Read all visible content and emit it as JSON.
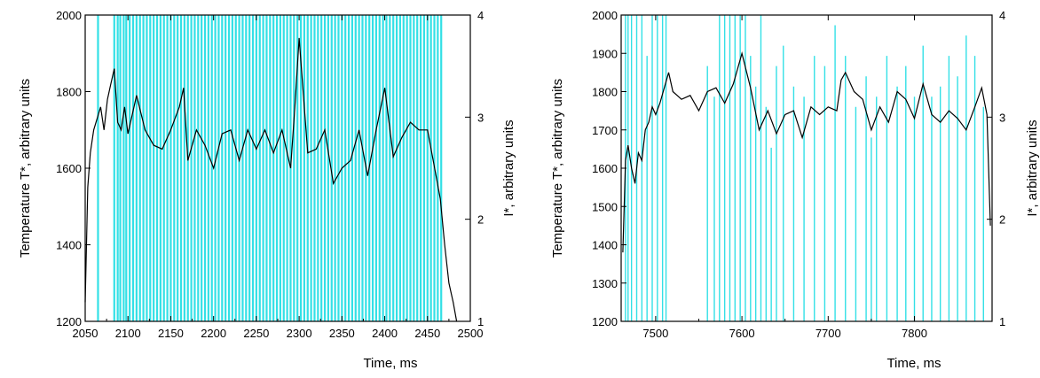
{
  "chart_data": [
    {
      "type": "line",
      "xlabel": "Time, ms",
      "ylabel": "Temperature T*, arbitrary units",
      "y2label": "I*, arbitrary units",
      "xlim": [
        2050,
        2500
      ],
      "ylim": [
        1200,
        2000
      ],
      "y2lim": [
        1,
        4
      ],
      "x_ticks": [
        2050,
        2100,
        2150,
        2200,
        2250,
        2300,
        2350,
        2400,
        2450,
        2500
      ],
      "y_ticks": [
        1200,
        1400,
        1600,
        1800,
        2000
      ],
      "y2_ticks": [
        1,
        2,
        3,
        4
      ],
      "grid": false,
      "colors": {
        "temperature": "#000000",
        "intensity": "#33e0e6"
      },
      "series": [
        {
          "axis": "left",
          "x": [
            2050,
            2053,
            2056,
            2060,
            2064,
            2068,
            2072,
            2076,
            2080,
            2084,
            2088,
            2092,
            2096,
            2100,
            2110,
            2120,
            2130,
            2140,
            2150,
            2160,
            2165,
            2170,
            2180,
            2190,
            2200,
            2210,
            2220,
            2230,
            2240,
            2250,
            2260,
            2270,
            2280,
            2290,
            2295,
            2300,
            2310,
            2320,
            2330,
            2340,
            2350,
            2360,
            2370,
            2380,
            2390,
            2400,
            2410,
            2420,
            2430,
            2440,
            2450,
            2460,
            2465,
            2470,
            2475,
            2480,
            2484
          ],
          "y": [
            1250,
            1550,
            1640,
            1700,
            1730,
            1760,
            1700,
            1780,
            1820,
            1860,
            1720,
            1700,
            1760,
            1690,
            1790,
            1700,
            1660,
            1650,
            1700,
            1760,
            1810,
            1620,
            1700,
            1660,
            1600,
            1690,
            1700,
            1620,
            1700,
            1650,
            1700,
            1640,
            1700,
            1600,
            1760,
            1940,
            1640,
            1650,
            1700,
            1560,
            1600,
            1620,
            1700,
            1580,
            1700,
            1810,
            1630,
            1680,
            1720,
            1700,
            1700,
            1580,
            1520,
            1400,
            1300,
            1250,
            1200
          ]
        },
        {
          "axis": "right",
          "x": [
            2065,
            2084,
            2088,
            2091,
            2095,
            2098,
            2102,
            2106,
            2110,
            2114,
            2118,
            2122,
            2126,
            2130,
            2134,
            2138,
            2142,
            2146,
            2150,
            2154,
            2158,
            2162,
            2166,
            2170,
            2174,
            2178,
            2182,
            2186,
            2190,
            2194,
            2198,
            2202,
            2206,
            2210,
            2214,
            2218,
            2222,
            2226,
            2230,
            2234,
            2238,
            2242,
            2246,
            2250,
            2254,
            2258,
            2262,
            2266,
            2270,
            2274,
            2278,
            2282,
            2286,
            2290,
            2294,
            2298,
            2302,
            2306,
            2310,
            2314,
            2318,
            2322,
            2326,
            2330,
            2334,
            2338,
            2342,
            2346,
            2350,
            2354,
            2358,
            2362,
            2366,
            2370,
            2374,
            2378,
            2382,
            2386,
            2390,
            2394,
            2398,
            2402,
            2406,
            2410,
            2414,
            2418,
            2422,
            2426,
            2430,
            2434,
            2438,
            2442,
            2446,
            2450,
            2454,
            2458,
            2462,
            2466
          ],
          "y": [
            4,
            4,
            4,
            4,
            4,
            4,
            4,
            4,
            4,
            4,
            4,
            4,
            4,
            4,
            4,
            4,
            4,
            4,
            4,
            4,
            4,
            4,
            4,
            4,
            4,
            4,
            4,
            4,
            4,
            4,
            4,
            4,
            4,
            4,
            4,
            4,
            4,
            4,
            4,
            4,
            4,
            4,
            4,
            4,
            4,
            4,
            4,
            4,
            4,
            4,
            4,
            4,
            4,
            4,
            4,
            4,
            4,
            4,
            4,
            4,
            4,
            4,
            4,
            4,
            4,
            4,
            4,
            4,
            4,
            4,
            4,
            4,
            4,
            4,
            4,
            4,
            4,
            4,
            4,
            4,
            4,
            4,
            4,
            4,
            4,
            4,
            4,
            4,
            4,
            4,
            4,
            4,
            4,
            4,
            4,
            4,
            4,
            4
          ]
        }
      ]
    },
    {
      "type": "line",
      "xlabel": "Time, ms",
      "ylabel": "Temperature T*, arbitrary units",
      "y2label": "I*, arbitrary units",
      "xlim": [
        7460,
        7890
      ],
      "ylim": [
        1200,
        2000
      ],
      "y2lim": [
        1,
        4
      ],
      "x_ticks": [
        7500,
        7600,
        7700,
        7800
      ],
      "y_ticks": [
        1200,
        1300,
        1400,
        1500,
        1600,
        1700,
        1800,
        1900,
        2000
      ],
      "y2_ticks": [
        1,
        2,
        3,
        4
      ],
      "grid": false,
      "colors": {
        "temperature": "#000000",
        "intensity": "#33e0e6"
      },
      "series": [
        {
          "axis": "left",
          "x": [
            7462,
            7465,
            7468,
            7472,
            7476,
            7480,
            7484,
            7488,
            7492,
            7496,
            7500,
            7505,
            7510,
            7515,
            7520,
            7530,
            7540,
            7550,
            7560,
            7570,
            7580,
            7590,
            7600,
            7610,
            7620,
            7630,
            7640,
            7650,
            7660,
            7670,
            7680,
            7690,
            7700,
            7710,
            7715,
            7720,
            7730,
            7740,
            7750,
            7760,
            7770,
            7780,
            7790,
            7800,
            7810,
            7820,
            7830,
            7840,
            7850,
            7860,
            7870,
            7878,
            7884,
            7888
          ],
          "y": [
            1380,
            1620,
            1660,
            1600,
            1560,
            1640,
            1620,
            1700,
            1720,
            1760,
            1740,
            1770,
            1810,
            1850,
            1800,
            1780,
            1790,
            1750,
            1800,
            1810,
            1770,
            1820,
            1900,
            1810,
            1700,
            1750,
            1690,
            1740,
            1750,
            1680,
            1760,
            1740,
            1760,
            1750,
            1830,
            1850,
            1800,
            1780,
            1700,
            1760,
            1720,
            1800,
            1780,
            1730,
            1820,
            1740,
            1720,
            1750,
            1730,
            1700,
            1760,
            1810,
            1740,
            1450
          ]
        },
        {
          "axis": "right",
          "x": [
            7465,
            7468,
            7472,
            7478,
            7484,
            7490,
            7496,
            7502,
            7508,
            7512,
            7560,
            7568,
            7574,
            7580,
            7586,
            7592,
            7598,
            7604,
            7610,
            7616,
            7622,
            7628,
            7634,
            7640,
            7648,
            7660,
            7672,
            7684,
            7696,
            7708,
            7720,
            7732,
            7744,
            7750,
            7756,
            7768,
            7780,
            7790,
            7800,
            7810,
            7820,
            7830,
            7840,
            7850,
            7860,
            7870,
            7880
          ],
          "y": [
            4,
            4,
            4,
            4,
            4,
            3.6,
            4,
            4,
            4,
            4,
            3.5,
            3.2,
            4,
            4,
            4,
            4,
            4,
            4,
            3.6,
            3.3,
            4,
            3.1,
            2.7,
            3.5,
            3.7,
            3.3,
            3.2,
            3.6,
            3.5,
            3.9,
            3.6,
            3.1,
            3.4,
            2.8,
            3.2,
            3.6,
            3.3,
            3.5,
            3.2,
            3.7,
            3.2,
            3.3,
            3.6,
            3.4,
            3.8,
            3.6,
            3.1
          ]
        }
      ]
    }
  ]
}
